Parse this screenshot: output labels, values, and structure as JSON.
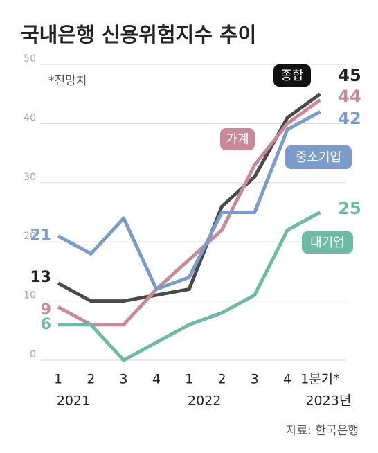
{
  "chart_data": {
    "type": "line",
    "title": "국내은행 신용위험지수 추이",
    "annotation": "*전망치",
    "source": "자료: 한국은행",
    "categories": [
      "1",
      "2",
      "3",
      "4",
      "1",
      "2",
      "3",
      "4",
      "1분기*"
    ],
    "year_labels": [
      "2021",
      null,
      null,
      null,
      "2022",
      null,
      null,
      null,
      "2023년"
    ],
    "ylim": [
      0,
      50
    ],
    "yticks": [
      0,
      10,
      20,
      30,
      40,
      50
    ],
    "grid": true,
    "series": [
      {
        "name": "종합",
        "color": "#4a4a4a",
        "values": [
          13,
          10,
          10,
          11,
          12,
          26,
          31,
          41,
          45
        ]
      },
      {
        "name": "가계",
        "color": "#c98a97",
        "values": [
          9,
          6,
          6,
          12,
          17,
          22,
          33,
          40,
          44
        ]
      },
      {
        "name": "중소기업",
        "color": "#7b9cc9",
        "values": [
          21,
          18,
          24,
          12,
          14,
          25,
          25,
          39,
          42
        ]
      },
      {
        "name": "대기업",
        "color": "#6dbba4",
        "values": [
          6,
          6,
          0,
          3,
          6,
          8,
          11,
          22,
          25
        ]
      }
    ]
  }
}
